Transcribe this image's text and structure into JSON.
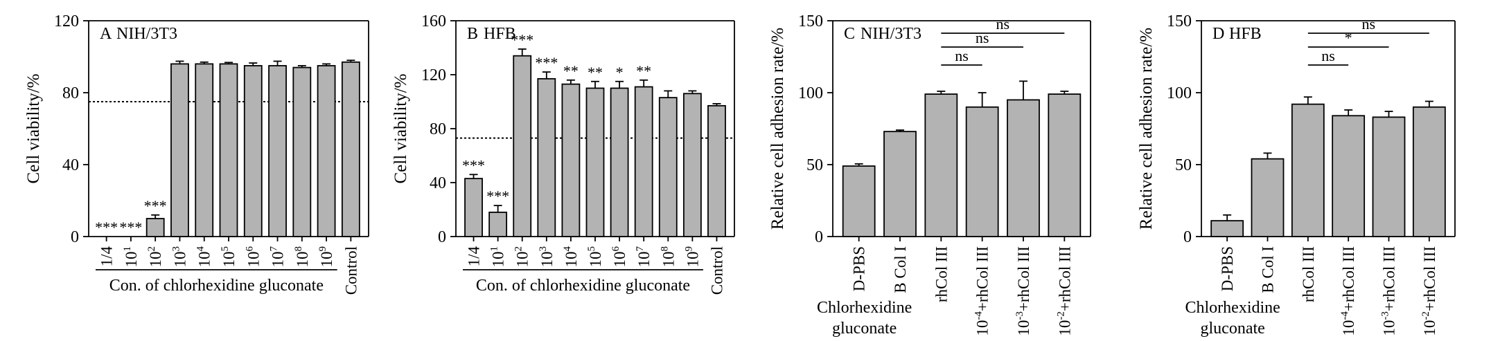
{
  "bar_color": "#b3b3b3",
  "line_color": "#000000",
  "chart_data": [
    {
      "id": "A",
      "type": "bar",
      "panel_label": "A",
      "panel_title": "NIH/3T3",
      "ylabel": "Cell viability/%",
      "ylim": [
        0,
        120
      ],
      "yticks": [
        "0",
        "40",
        "80",
        "120"
      ],
      "threshold": 75,
      "categories": [
        {
          "base": "1/4",
          "exp": ""
        },
        {
          "base": "10",
          "exp": "1"
        },
        {
          "base": "10",
          "exp": "2"
        },
        {
          "base": "10",
          "exp": "3"
        },
        {
          "base": "10",
          "exp": "4"
        },
        {
          "base": "10",
          "exp": "5"
        },
        {
          "base": "10",
          "exp": "6"
        },
        {
          "base": "10",
          "exp": "7"
        },
        {
          "base": "10",
          "exp": "8"
        },
        {
          "base": "10",
          "exp": "9"
        },
        {
          "base": "Control",
          "exp": ""
        }
      ],
      "values": [
        0,
        0,
        10,
        96,
        96,
        96,
        95,
        95,
        94,
        95,
        97
      ],
      "errors": [
        0,
        0,
        2,
        1.5,
        1,
        0.8,
        1.5,
        2.5,
        1,
        1,
        1
      ],
      "significance": [
        "***",
        "***",
        "***",
        "",
        "",
        "",
        "",
        "",
        "",
        "",
        ""
      ],
      "group_label": "Con. of chlorhexidine gluconate",
      "group_span": [
        0,
        9
      ]
    },
    {
      "id": "B",
      "type": "bar",
      "panel_label": "B",
      "panel_title": "HFB",
      "ylabel": "Cell viability/%",
      "ylim": [
        0,
        160
      ],
      "yticks": [
        "0",
        "40",
        "80",
        "120",
        "160"
      ],
      "threshold": 73,
      "categories": [
        {
          "base": "1/4",
          "exp": ""
        },
        {
          "base": "10",
          "exp": "1"
        },
        {
          "base": "10",
          "exp": "2"
        },
        {
          "base": "10",
          "exp": "3"
        },
        {
          "base": "10",
          "exp": "4"
        },
        {
          "base": "10",
          "exp": "5"
        },
        {
          "base": "10",
          "exp": "6"
        },
        {
          "base": "10",
          "exp": "7"
        },
        {
          "base": "10",
          "exp": "8"
        },
        {
          "base": "10",
          "exp": "9"
        },
        {
          "base": "Control",
          "exp": ""
        }
      ],
      "values": [
        43,
        18,
        134,
        117,
        113,
        110,
        110,
        111,
        103,
        106,
        97
      ],
      "errors": [
        3,
        5,
        5,
        5,
        3,
        5,
        5,
        5,
        5,
        2,
        1.5
      ],
      "significance": [
        "***",
        "***",
        "***",
        "***",
        "**",
        "**",
        "*",
        "**",
        "",
        "",
        ""
      ],
      "group_label": "Con. of chlorhexidine gluconate",
      "group_span": [
        0,
        9
      ]
    },
    {
      "id": "C",
      "type": "bar",
      "panel_label": "C",
      "panel_title": "NIH/3T3",
      "ylabel": "Relative cell adhesion rate/%",
      "ylim": [
        0,
        150
      ],
      "yticks": [
        "0",
        "50",
        "100",
        "150"
      ],
      "categories": [
        {
          "pre": "",
          "exp": "",
          "post": "D-PBS"
        },
        {
          "pre": "",
          "exp": "",
          "post": "B Col I"
        },
        {
          "pre": "",
          "exp": "",
          "post": "rhCol III"
        },
        {
          "pre": "10",
          "exp": "-4",
          "post": "+rhCol III"
        },
        {
          "pre": "10",
          "exp": "-3",
          "post": "+rhCol III"
        },
        {
          "pre": "10",
          "exp": "-2",
          "post": "+rhCol III"
        }
      ],
      "values": [
        49,
        73,
        99,
        90,
        95,
        99
      ],
      "errors": [
        1.5,
        1,
        2,
        10,
        13,
        2
      ],
      "comparisons": [
        {
          "from": 2,
          "to": 5,
          "label": "ns"
        },
        {
          "from": 2,
          "to": 4,
          "label": "ns"
        },
        {
          "from": 2,
          "to": 3,
          "label": "ns"
        }
      ],
      "xlabel_lines": [
        "Chlorhexidine",
        "gluconate"
      ]
    },
    {
      "id": "D",
      "type": "bar",
      "panel_label": "D",
      "panel_title": "HFB",
      "ylabel": "Relative cell adhesion rate/%",
      "ylim": [
        0,
        150
      ],
      "yticks": [
        "0",
        "50",
        "100",
        "150"
      ],
      "categories": [
        {
          "pre": "",
          "exp": "",
          "post": "D-PBS"
        },
        {
          "pre": "",
          "exp": "",
          "post": "B Col I"
        },
        {
          "pre": "",
          "exp": "",
          "post": "rhCol III"
        },
        {
          "pre": "10",
          "exp": "-4",
          "post": "+rhCol III"
        },
        {
          "pre": "10",
          "exp": "-3",
          "post": "+rhCol III"
        },
        {
          "pre": "10",
          "exp": "-2",
          "post": "+rhCol III"
        }
      ],
      "values": [
        11,
        54,
        92,
        84,
        83,
        90
      ],
      "errors": [
        4,
        4,
        5,
        4,
        4,
        4
      ],
      "comparisons": [
        {
          "from": 2,
          "to": 5,
          "label": "ns"
        },
        {
          "from": 2,
          "to": 4,
          "label": "*"
        },
        {
          "from": 2,
          "to": 3,
          "label": "ns"
        }
      ],
      "xlabel_lines": [
        "Chlorhexidine",
        "gluconate"
      ]
    }
  ]
}
